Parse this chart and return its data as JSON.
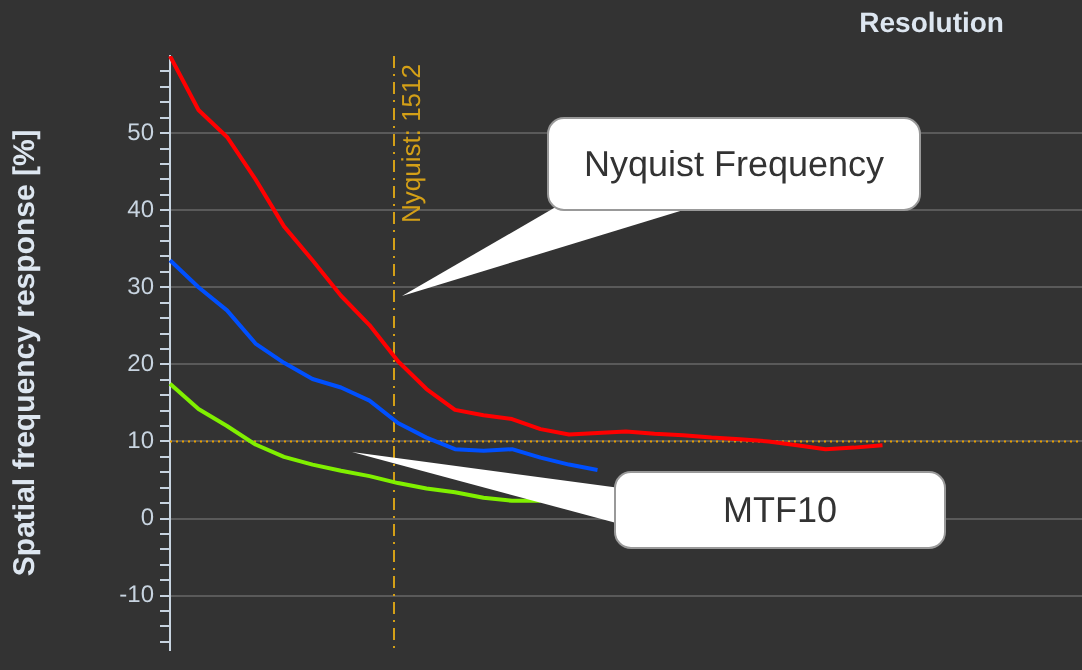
{
  "chart_data": {
    "type": "line",
    "title": "Resolution",
    "ylabel": "Spatial frequency response [%]",
    "categories": [
      null,
      null,
      null,
      null,
      null,
      null,
      null,
      null,
      null,
      null,
      null,
      null,
      null,
      null,
      null,
      null,
      null,
      null,
      null,
      null,
      null,
      null,
      null,
      null,
      null,
      null,
      null,
      null,
      null,
      null,
      null,
      null,
      null
    ],
    "ylim": [
      -17,
      60
    ],
    "yticks": [
      {
        "value": -16,
        "label": null
      },
      {
        "value": -14,
        "label": null
      },
      {
        "value": -12,
        "label": null
      },
      -10,
      {
        "value": -8,
        "label": null
      },
      {
        "value": -6,
        "label": null
      },
      {
        "value": -4,
        "label": null
      },
      {
        "value": -2,
        "label": null
      },
      0,
      {
        "value": 2,
        "label": null
      },
      {
        "value": 4,
        "label": null
      },
      {
        "value": 6,
        "label": null
      },
      {
        "value": 8,
        "label": null
      },
      10,
      {
        "value": 12,
        "label": null
      },
      {
        "value": 14,
        "label": null
      },
      {
        "value": 16,
        "label": null
      },
      {
        "value": 18,
        "label": null
      },
      20,
      {
        "value": 22,
        "label": null
      },
      {
        "value": 24,
        "label": null
      },
      {
        "value": 26,
        "label": null
      },
      {
        "value": 28,
        "label": null
      },
      30,
      {
        "value": 32,
        "label": null
      },
      {
        "value": 34,
        "label": null
      },
      {
        "value": 36,
        "label": null
      },
      {
        "value": 38,
        "label": null
      },
      40,
      {
        "value": 42,
        "label": null
      },
      {
        "value": 44,
        "label": null
      },
      {
        "value": 46,
        "label": null
      },
      {
        "value": 48,
        "label": null
      },
      50,
      {
        "value": 52,
        "label": null
      },
      {
        "value": 54,
        "label": null
      },
      {
        "value": 56,
        "label": null
      },
      {
        "value": 58,
        "label": null
      }
    ],
    "tick_labels": "y",
    "grid": "y",
    "legend": false,
    "marker": "none",
    "line_style": "solid",
    "series": [
      {
        "color": "#ff0000",
        "values": [
          60,
          53,
          49.5,
          44,
          37.9,
          33.5,
          28.9,
          25.1,
          20.4,
          16.8,
          14.1,
          13.4,
          12.9,
          11.6,
          10.9,
          11.1,
          11.3,
          11,
          10.8,
          10.5,
          10.3,
          10,
          9.5,
          9,
          9.2,
          9.5,
          null,
          null,
          null,
          null,
          null,
          null,
          null
        ]
      },
      {
        "color": "#0050ff",
        "values": [
          33.5,
          30,
          27,
          22.7,
          20.2,
          18.1,
          17,
          15.3,
          12.4,
          10.5,
          9,
          8.8,
          9,
          7.9,
          7,
          6.3,
          null,
          null,
          null,
          null,
          null,
          null,
          null,
          null,
          null,
          null,
          null,
          null,
          null,
          null,
          null,
          null,
          null
        ]
      },
      {
        "color": "#80f000",
        "values": [
          17.5,
          14.2,
          12,
          9.6,
          8,
          7,
          6.2,
          5.5,
          4.6,
          3.9,
          3.4,
          2.7,
          2.3,
          2.3,
          null,
          null,
          null,
          null,
          null,
          null,
          null,
          null,
          null,
          null,
          null,
          null,
          null,
          null,
          null,
          null,
          null,
          null,
          null
        ]
      }
    ],
    "ref_lines": [
      {
        "axis": "y",
        "value": 10,
        "color": "#e8a000",
        "line_style": "dotted"
      }
    ],
    "annotations": [
      "Nyquist: 1512",
      "Nyquist Frequency",
      "MTF10"
    ]
  }
}
